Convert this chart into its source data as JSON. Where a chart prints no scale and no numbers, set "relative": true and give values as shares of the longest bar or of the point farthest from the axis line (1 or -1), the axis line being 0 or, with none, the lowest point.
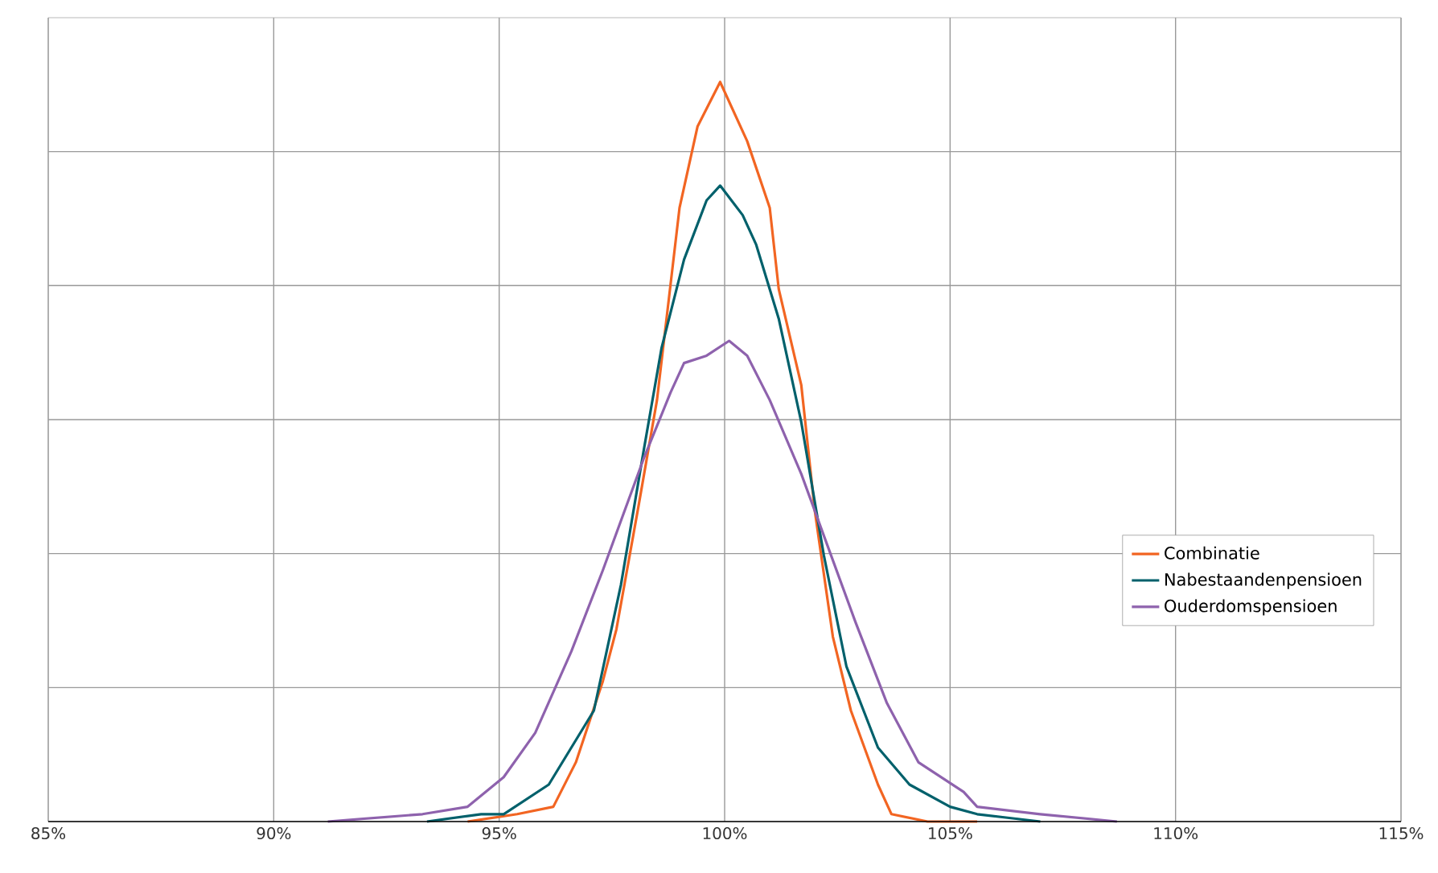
{
  "chart_data": {
    "type": "line",
    "relative": true,
    "grid": true,
    "legend": "right",
    "marker": "none",
    "line_style": "solid",
    "xlim": [
      85,
      115
    ],
    "xticks": [
      {
        "value": 85,
        "label": "85%"
      },
      {
        "value": 90,
        "label": "90%"
      },
      {
        "value": 95,
        "label": "95%"
      },
      {
        "value": 100,
        "label": "100%"
      },
      {
        "value": 105,
        "label": "105%"
      },
      {
        "value": 110,
        "label": "110%"
      },
      {
        "value": 115,
        "label": "115%"
      }
    ],
    "series": [
      {
        "name": "Combinatie",
        "color": "#f26522",
        "x": [
          94.3,
          95.4,
          96.2,
          96.7,
          97.3,
          97.6,
          98.1,
          98.5,
          99.0,
          99.4,
          99.9,
          100.5,
          101.0,
          101.2,
          101.7,
          102.0,
          102.4,
          102.8,
          103.4,
          103.7,
          104.5,
          105.6
        ],
        "values": [
          0,
          0.01,
          0.02,
          0.08,
          0.19,
          0.26,
          0.43,
          0.57,
          0.83,
          0.94,
          1.0,
          0.92,
          0.83,
          0.72,
          0.59,
          0.42,
          0.25,
          0.15,
          0.05,
          0.01,
          0,
          0
        ]
      },
      {
        "name": "Nabestaandenpensioen",
        "color": "#00606b",
        "x": [
          93.4,
          94.6,
          95.1,
          96.1,
          97.1,
          97.7,
          98.2,
          98.6,
          99.1,
          99.6,
          99.9,
          100.4,
          100.7,
          101.2,
          101.7,
          102.2,
          102.7,
          103.4,
          104.1,
          105.0,
          105.6,
          107.0
        ],
        "values": [
          0,
          0.01,
          0.01,
          0.05,
          0.15,
          0.32,
          0.5,
          0.64,
          0.76,
          0.84,
          0.86,
          0.82,
          0.78,
          0.68,
          0.54,
          0.36,
          0.21,
          0.1,
          0.05,
          0.02,
          0.01,
          0
        ]
      },
      {
        "name": "Ouderdomspensioen",
        "color": "#8e62ad",
        "x": [
          91.2,
          93.3,
          94.3,
          95.1,
          95.8,
          96.6,
          97.3,
          98.2,
          98.8,
          99.1,
          99.6,
          100.1,
          100.5,
          101.0,
          101.7,
          102.3,
          102.9,
          103.6,
          104.3,
          105.3,
          105.6,
          107.0,
          108.7
        ],
        "values": [
          0,
          0.01,
          0.02,
          0.06,
          0.12,
          0.23,
          0.34,
          0.49,
          0.58,
          0.62,
          0.63,
          0.65,
          0.63,
          0.57,
          0.47,
          0.37,
          0.27,
          0.16,
          0.08,
          0.04,
          0.02,
          0.01,
          0
        ]
      }
    ]
  }
}
